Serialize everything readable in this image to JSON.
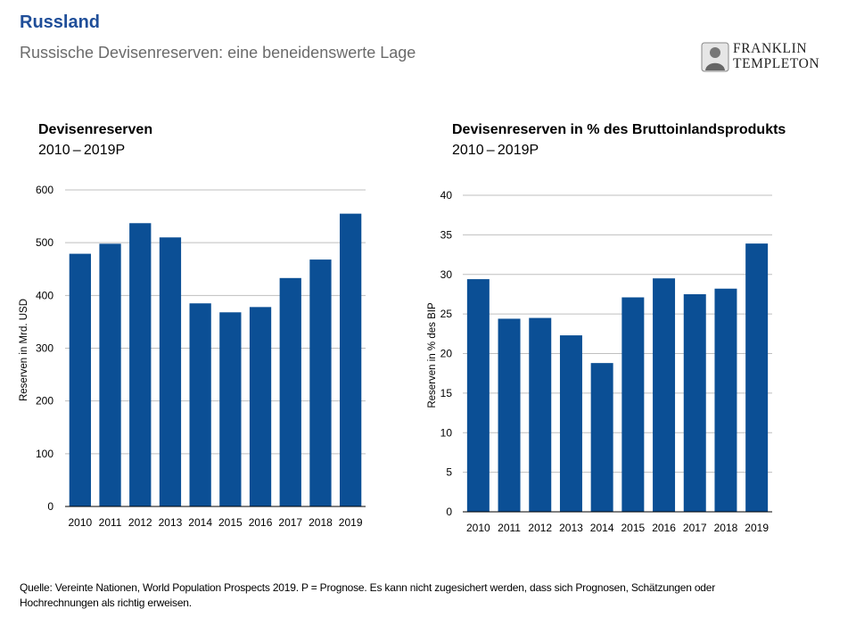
{
  "header": {
    "title": "Russland",
    "subtitle": "Russische Devisenreserven: eine beneidenswerte Lage"
  },
  "logo": {
    "line1": "FRANKLIN",
    "line2": "TEMPLETON"
  },
  "colors": {
    "bar": "#0b4f95",
    "title": "#1f4e99",
    "grid": "#bfbfbf"
  },
  "charts": [
    {
      "title": "Devisenreserven",
      "subtitle": "2010 – 2019P"
    },
    {
      "title": "Devisenreserven in % des Bruttoinlandsprodukts",
      "subtitle": "2010 – 2019P"
    }
  ],
  "chart_data": [
    {
      "type": "bar",
      "title": "Devisenreserven",
      "subtitle": "2010 – 2019P",
      "categories": [
        "2010",
        "2011",
        "2012",
        "2013",
        "2014",
        "2015",
        "2016",
        "2017",
        "2018",
        "2019"
      ],
      "values": [
        479,
        498,
        537,
        510,
        385,
        368,
        378,
        433,
        468,
        555
      ],
      "xlabel": "",
      "ylabel": "Reserven in Mrd. USD",
      "ylim": [
        0,
        600
      ],
      "yticks": [
        0,
        100,
        200,
        300,
        400,
        500,
        600
      ],
      "grid": true
    },
    {
      "type": "bar",
      "title": "Devisenreserven in % des Bruttoinlandsprodukts",
      "subtitle": "2010 – 2019P",
      "categories": [
        "2010",
        "2011",
        "2012",
        "2013",
        "2014",
        "2015",
        "2016",
        "2017",
        "2018",
        "2019"
      ],
      "values": [
        29.4,
        24.4,
        24.5,
        22.3,
        18.8,
        27.1,
        29.5,
        27.5,
        28.2,
        33.9
      ],
      "xlabel": "",
      "ylabel": "Reserven in % des BIP",
      "ylim": [
        0,
        40
      ],
      "yticks": [
        0,
        5,
        10,
        15,
        20,
        25,
        30,
        35,
        40
      ],
      "grid": true
    }
  ],
  "footer": {
    "source_line1": "Quelle: Vereinte Nationen, World Population Prospects 2019. P = Prognose. Es kann nicht zugesichert werden, dass sich Prognosen, Schätzungen oder",
    "source_line2": "Hochrechnungen als richtig erweisen."
  }
}
